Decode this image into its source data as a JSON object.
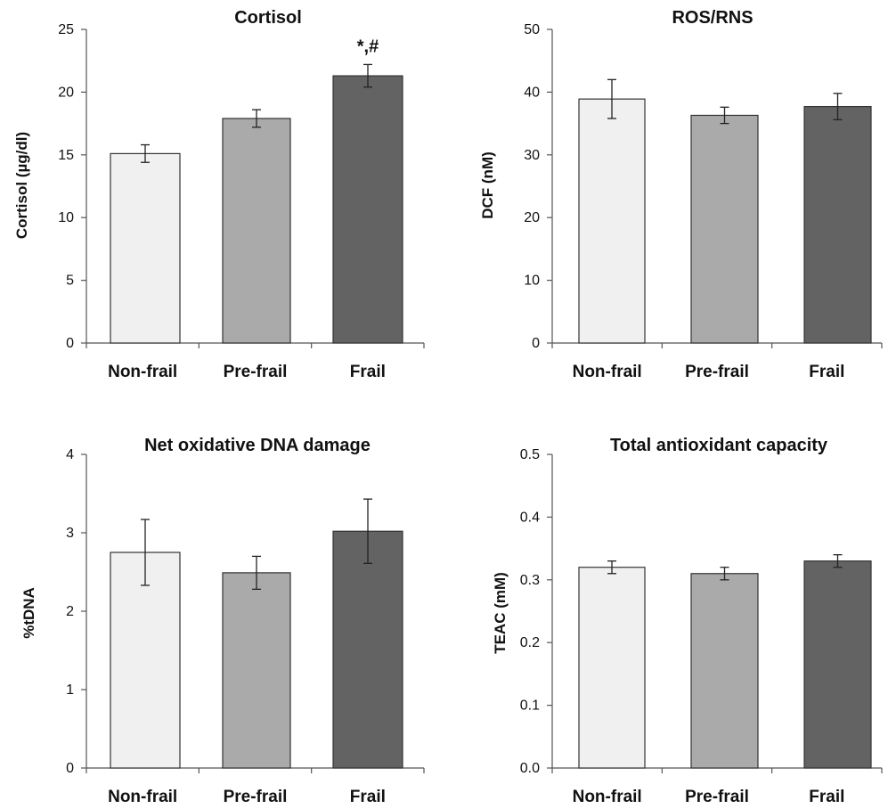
{
  "colors": {
    "Non-frail": "#f0f0f0",
    "Pre-frail": "#aaaaaa",
    "Frail": "#636363"
  },
  "chart_data": [
    {
      "type": "bar",
      "title": "Cortisol",
      "ylabel": "Cortisol (µg/dl)",
      "xlabel": "",
      "categories": [
        "Non-frail",
        "Pre-frail",
        "Frail"
      ],
      "values": [
        15.1,
        17.9,
        21.3
      ],
      "errors": [
        0.7,
        0.7,
        0.9
      ],
      "ylim": [
        0,
        25
      ],
      "yticks": [
        0,
        5,
        10,
        15,
        20,
        25
      ],
      "ytick_labels": [
        "0",
        "5",
        "10",
        "15",
        "20",
        "25"
      ],
      "annotations": [
        {
          "category": "Frail",
          "text": "*,#"
        }
      ],
      "grid": false
    },
    {
      "type": "bar",
      "title": "ROS/RNS",
      "ylabel": "DCF (nM)",
      "xlabel": "",
      "categories": [
        "Non-frail",
        "Pre-frail",
        "Frail"
      ],
      "values": [
        38.9,
        36.3,
        37.7
      ],
      "errors": [
        3.1,
        1.3,
        2.1
      ],
      "ylim": [
        0,
        50
      ],
      "yticks": [
        0,
        10,
        20,
        30,
        40,
        50
      ],
      "ytick_labels": [
        "0",
        "10",
        "20",
        "30",
        "40",
        "50"
      ],
      "annotations": [],
      "grid": false
    },
    {
      "type": "bar",
      "title": "Net oxidative DNA damage",
      "ylabel": "%tDNA",
      "xlabel": "",
      "categories": [
        "Non-frail",
        "Pre-frail",
        "Frail"
      ],
      "values": [
        2.75,
        2.49,
        3.02
      ],
      "errors": [
        0.42,
        0.21,
        0.41
      ],
      "ylim": [
        0,
        4
      ],
      "yticks": [
        0,
        1,
        2,
        3,
        4
      ],
      "ytick_labels": [
        "0",
        "1",
        "2",
        "3",
        "4"
      ],
      "annotations": [],
      "grid": false
    },
    {
      "type": "bar",
      "title": "Total antioxidant capacity",
      "ylabel": "TEAC (mM)",
      "xlabel": "",
      "categories": [
        "Non-frail",
        "Pre-frail",
        "Frail"
      ],
      "values": [
        0.32,
        0.31,
        0.33
      ],
      "errors": [
        0.01,
        0.01,
        0.01
      ],
      "ylim": [
        0,
        0.5
      ],
      "yticks": [
        0,
        0.1,
        0.2,
        0.3,
        0.4,
        0.5
      ],
      "ytick_labels": [
        "0.0",
        "0.1",
        "0.2",
        "0.3",
        "0.4",
        "0.5"
      ],
      "annotations": [],
      "grid": false
    }
  ]
}
